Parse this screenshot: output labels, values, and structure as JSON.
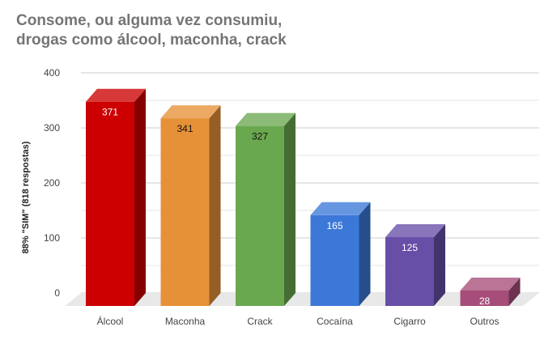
{
  "chart_data": {
    "type": "bar",
    "title": "Consome, ou alguma vez consumiu,\ndrogas como álcool, maconha, crack",
    "ylabel": "88% \"SIM\" (818 respostas)",
    "xlabel": "",
    "categories": [
      "Álcool",
      "Maconha",
      "Crack",
      "Cocaína",
      "Cigarro",
      "Outros"
    ],
    "values": [
      371,
      341,
      327,
      165,
      125,
      28
    ],
    "bar_colors": [
      "#cc0000",
      "#e69138",
      "#6aa84f",
      "#3c78d8",
      "#674ea7",
      "#a64d79"
    ],
    "label_colors": [
      "#ffffff",
      "#111111",
      "#111111",
      "#ffffff",
      "#ffffff",
      "#ffffff"
    ],
    "ylim": [
      0,
      400
    ],
    "yticks": [
      0,
      100,
      200,
      300,
      400
    ],
    "grid": true,
    "three_d": true
  }
}
